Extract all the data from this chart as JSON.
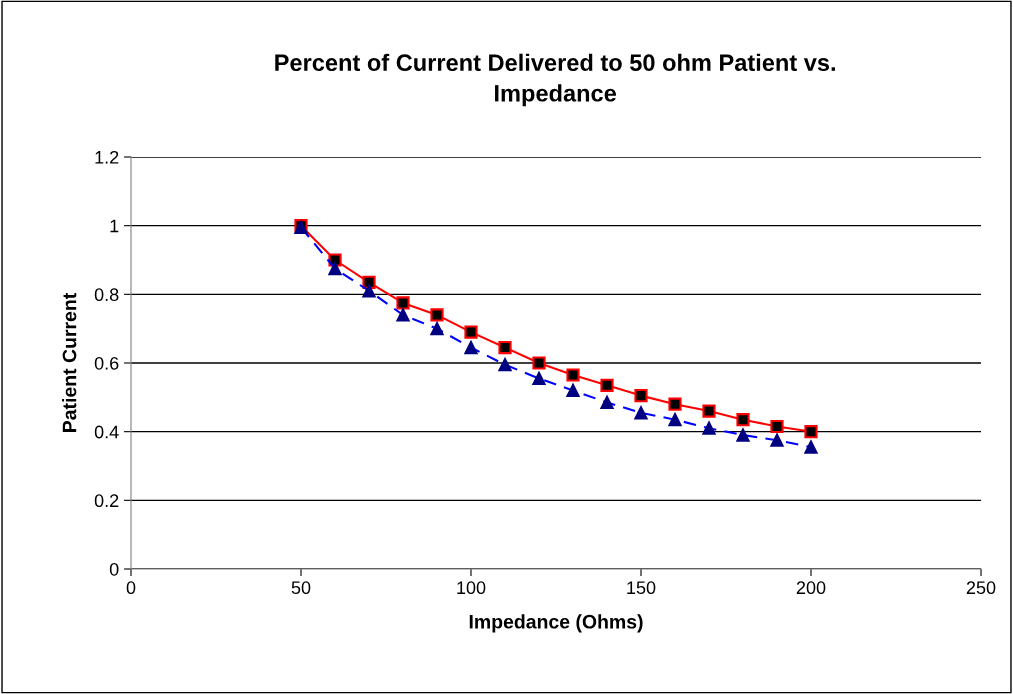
{
  "chart_data": {
    "type": "line",
    "title": "Percent of Current Delivered to 50 ohm Patient vs.\nImpedance",
    "xlabel": "Impedance (Ohms)",
    "ylabel": "Patient Current",
    "x": [
      50,
      60,
      70,
      80,
      90,
      100,
      110,
      120,
      130,
      140,
      150,
      160,
      170,
      180,
      190,
      200
    ],
    "series": [
      {
        "color": "#ff0000",
        "marker": "square",
        "line_style": "solid",
        "values": [
          1,
          0.9,
          0.835,
          0.775,
          0.74,
          0.69,
          0.645,
          0.6,
          0.565,
          0.535,
          0.505,
          0.48,
          0.46,
          0.435,
          0.415,
          0.4
        ]
      },
      {
        "color": "#0000ff",
        "marker": "triangle",
        "line_style": "dashed",
        "values": [
          0.995,
          0.875,
          0.81,
          0.74,
          0.7,
          0.645,
          0.595,
          0.555,
          0.52,
          0.485,
          0.455,
          0.435,
          0.41,
          0.39,
          0.375,
          0.355
        ]
      }
    ],
    "xlim": [
      0,
      250
    ],
    "xticks": [
      0,
      50,
      100,
      150,
      200,
      250
    ],
    "ylim": [
      0,
      1.2
    ],
    "yticks": [
      0,
      0.2,
      0.4,
      0.6,
      0.8,
      1,
      1.2
    ],
    "grid": "y"
  }
}
